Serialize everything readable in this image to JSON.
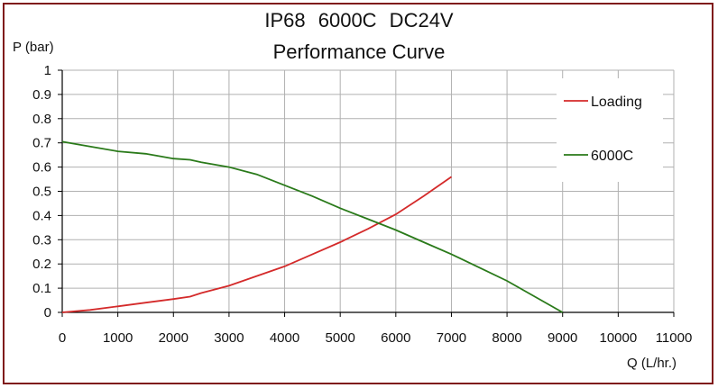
{
  "chart_data": {
    "type": "line",
    "title": "IP68   6000C  DC24V",
    "subtitle": "Performance Curve",
    "xlabel": "Q (L/hr.)",
    "ylabel": "P (bar)",
    "xlim": [
      0,
      11000
    ],
    "ylim": [
      0,
      1
    ],
    "xticks": [
      "0",
      "1000",
      "2000",
      "3000",
      "4000",
      "5000",
      "6000",
      "7000",
      "8000",
      "9000",
      "10000",
      "11000"
    ],
    "yticks": [
      "0",
      "0.1",
      "0.2",
      "0.3",
      "0.4",
      "0.5",
      "0.6",
      "0.7",
      "0.8",
      "0.9",
      "1"
    ],
    "grid": true,
    "legend_position": "right",
    "series": [
      {
        "name": "Loading",
        "color": "#d42a2a",
        "x": [
          0,
          500,
          1000,
          1500,
          2000,
          2300,
          2500,
          3000,
          3500,
          4000,
          4500,
          5000,
          5500,
          6000,
          6500,
          7000
        ],
        "y": [
          0,
          0.01,
          0.025,
          0.04,
          0.055,
          0.065,
          0.08,
          0.11,
          0.15,
          0.19,
          0.24,
          0.29,
          0.345,
          0.405,
          0.48,
          0.56
        ]
      },
      {
        "name": "6000C",
        "color": "#2a7a1a",
        "x": [
          0,
          500,
          1000,
          1500,
          2000,
          2300,
          2500,
          3000,
          3500,
          4000,
          4500,
          5000,
          5500,
          6000,
          6500,
          7000,
          7500,
          8000,
          8500,
          9000
        ],
        "y": [
          0.705,
          0.685,
          0.665,
          0.655,
          0.635,
          0.63,
          0.62,
          0.6,
          0.57,
          0.525,
          0.48,
          0.43,
          0.385,
          0.34,
          0.29,
          0.24,
          0.185,
          0.13,
          0.065,
          0
        ]
      }
    ]
  }
}
